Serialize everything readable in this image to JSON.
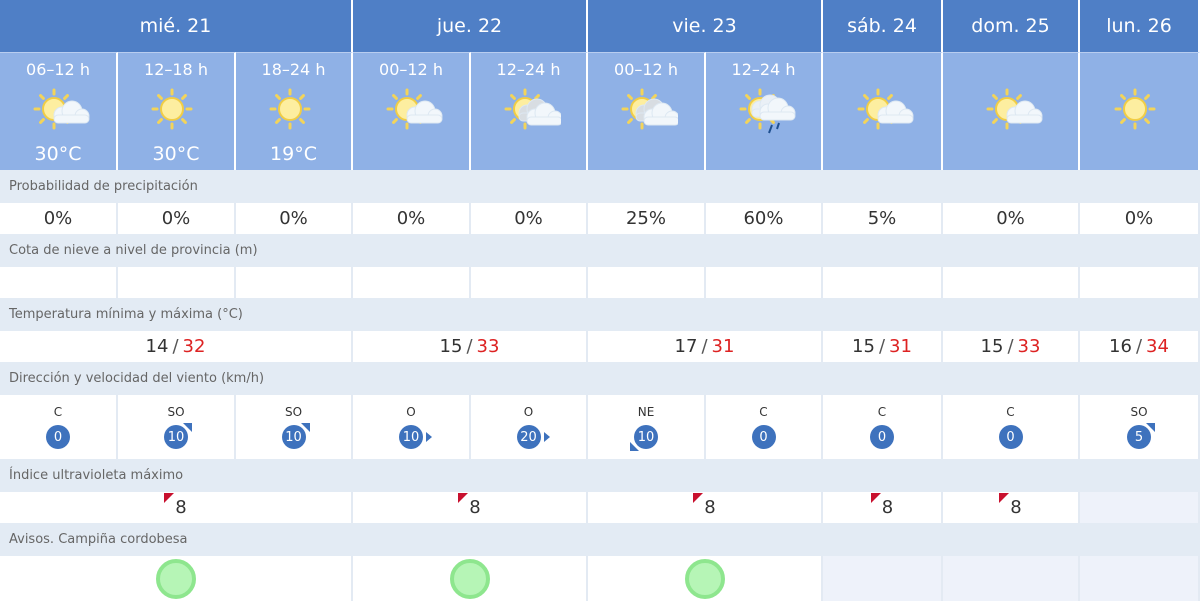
{
  "days": [
    {
      "label": "mié. 21",
      "span": 3,
      "temp_min": "14",
      "temp_max": "32",
      "uv": "8",
      "aviso": "green"
    },
    {
      "label": "jue. 22",
      "span": 2,
      "temp_min": "15",
      "temp_max": "33",
      "uv": "8",
      "aviso": "green"
    },
    {
      "label": "vie. 23",
      "span": 2,
      "temp_min": "17",
      "temp_max": "31",
      "uv": "8",
      "aviso": "green"
    },
    {
      "label": "sáb. 24",
      "span": 1,
      "temp_min": "15",
      "temp_max": "31",
      "uv": "8",
      "aviso": ""
    },
    {
      "label": "dom. 25",
      "span": 1,
      "temp_min": "15",
      "temp_max": "33",
      "uv": "8",
      "aviso": ""
    },
    {
      "label": "lun. 26",
      "span": 1,
      "temp_min": "16",
      "temp_max": "34",
      "uv": "",
      "aviso": ""
    }
  ],
  "periods": [
    {
      "label": "06–12 h",
      "icon": "sun-cloud-icon",
      "temp": "30°C",
      "precip": "0%",
      "wind_dir": "C",
      "wind_speed": "0",
      "arrow": ""
    },
    {
      "label": "12–18 h",
      "icon": "sun-icon",
      "temp": "30°C",
      "precip": "0%",
      "wind_dir": "SO",
      "wind_speed": "10",
      "arrow": "NE"
    },
    {
      "label": "18–24 h",
      "icon": "sun-icon",
      "temp": "19°C",
      "precip": "0%",
      "wind_dir": "SO",
      "wind_speed": "10",
      "arrow": "NE"
    },
    {
      "label": "00–12 h",
      "icon": "sun-cloud-icon",
      "temp": "",
      "precip": "0%",
      "wind_dir": "O",
      "wind_speed": "10",
      "arrow": "E"
    },
    {
      "label": "12–24 h",
      "icon": "sun-clouds-icon",
      "temp": "",
      "precip": "0%",
      "wind_dir": "O",
      "wind_speed": "20",
      "arrow": "E"
    },
    {
      "label": "00–12 h",
      "icon": "sun-clouds-icon",
      "temp": "",
      "precip": "25%",
      "wind_dir": "NE",
      "wind_speed": "10",
      "arrow": "SW"
    },
    {
      "label": "12–24 h",
      "icon": "sun-cloud-rain-icon",
      "temp": "",
      "precip": "60%",
      "wind_dir": "C",
      "wind_speed": "0",
      "arrow": ""
    },
    {
      "label": "",
      "icon": "sun-cloud-icon",
      "temp": "",
      "precip": "5%",
      "wind_dir": "C",
      "wind_speed": "0",
      "arrow": ""
    },
    {
      "label": "",
      "icon": "sun-cloud-icon",
      "temp": "",
      "precip": "0%",
      "wind_dir": "C",
      "wind_speed": "0",
      "arrow": ""
    },
    {
      "label": "",
      "icon": "sun-icon",
      "temp": "",
      "precip": "0%",
      "wind_dir": "SO",
      "wind_speed": "5",
      "arrow": "NE"
    }
  ],
  "labels": {
    "precip": "Probabilidad de precipitación",
    "snow": "Cota de nieve a nivel de provincia (m)",
    "temp": "Temperatura mínima y máxima (°C)",
    "wind": "Dirección y velocidad del viento (km/h)",
    "uv": "Índice ultravioleta máximo",
    "avisos": "Avisos. Campiña cordobesa"
  },
  "colors": {
    "header": "#4f7fc6",
    "period": "#8fb1e6",
    "temp_max": "#dd2222",
    "uv_flag": "#c8102e",
    "aviso_green": "#8ee68e"
  }
}
